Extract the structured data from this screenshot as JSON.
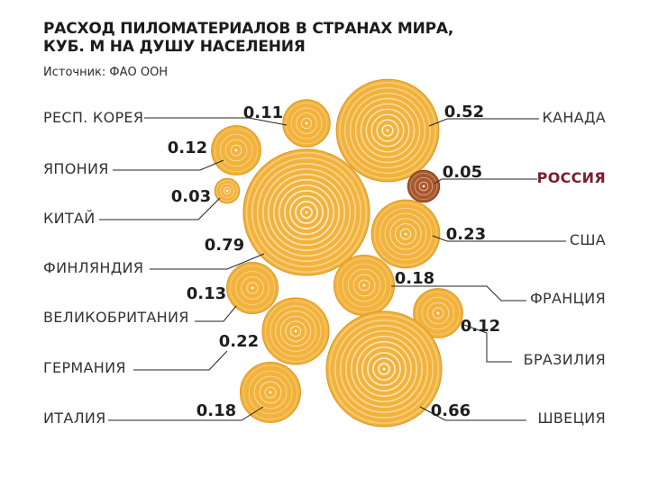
{
  "header": {
    "title": "РАСХОД ПИЛОМАТЕРИАЛОВ В СТРАНАХ МИРА, КУБ. М НА ДУШУ НАСЕЛЕНИЯ",
    "source": "Источник: ФАО ООН"
  },
  "colors": {
    "bubble": "#f2b33d",
    "bubble_dark": "#de9a24",
    "ring": "#ffffff",
    "russia_bubble": "#a9582e",
    "russia_label": "#7a1e2a"
  },
  "chart_data": {
    "type": "bubble",
    "title": "РАСХОД ПИЛОМАТЕРИАЛОВ В СТРАНАХ МИРА, КУБ. М НА ДУШУ НАСЕЛЕНИЯ",
    "source": "Источник: ФАО ООН",
    "unit": "",
    "points": [
      {
        "country": "РЕСП. КОРЕЯ",
        "value": "0.11"
      },
      {
        "country": "ЯПОНИЯ",
        "value": "0.12"
      },
      {
        "country": "КИТАЙ",
        "value": "0.03"
      },
      {
        "country": "ФИНЛЯНДИЯ",
        "value": "0.79"
      },
      {
        "country": "ВЕЛИКОБРИТАНИЯ",
        "value": "0.13"
      },
      {
        "country": "ГЕРМАНИЯ",
        "value": "0.22"
      },
      {
        "country": "ИТАЛИЯ",
        "value": "0.18"
      },
      {
        "country": "КАНАДА",
        "value": "0.52"
      },
      {
        "country": "РОССИЯ",
        "value": "0.05",
        "highlight": true
      },
      {
        "country": "США",
        "value": "0.23"
      },
      {
        "country": "ФРАНЦИЯ",
        "value": "0.18"
      },
      {
        "country": "БРАЗИЛИЯ",
        "value": "0.12"
      },
      {
        "country": "ШВЕЦИЯ",
        "value": "0.66"
      }
    ]
  }
}
